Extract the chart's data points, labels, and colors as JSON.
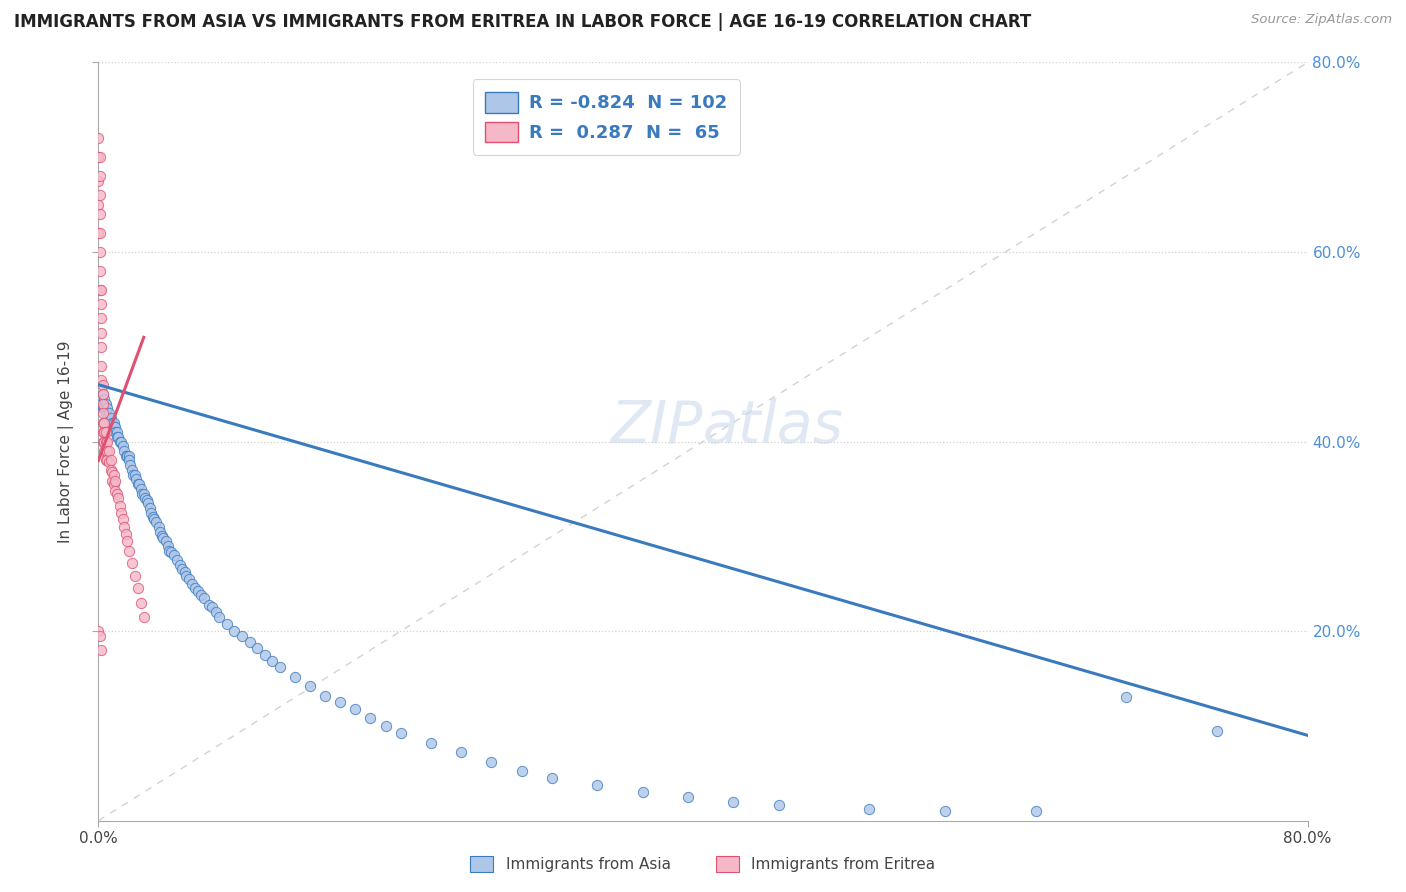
{
  "title": "IMMIGRANTS FROM ASIA VS IMMIGRANTS FROM ERITREA IN LABOR FORCE | AGE 16-19 CORRELATION CHART",
  "source": "Source: ZipAtlas.com",
  "ylabel": "In Labor Force | Age 16-19",
  "xlim": [
    0.0,
    0.8
  ],
  "ylim": [
    0.0,
    0.8
  ],
  "legend_r_asia": "-0.824",
  "legend_n_asia": "102",
  "legend_r_eritrea": "0.287",
  "legend_n_eritrea": "65",
  "color_asia": "#aec6e8",
  "color_eritrea": "#f4b8c8",
  "line_color_asia": "#3a7abf",
  "line_color_eritrea": "#e05070",
  "title_fontsize": 12,
  "axis_fontsize": 11,
  "asia_x": [
    0.001,
    0.002,
    0.003,
    0.003,
    0.004,
    0.004,
    0.005,
    0.005,
    0.006,
    0.006,
    0.007,
    0.007,
    0.008,
    0.009,
    0.01,
    0.01,
    0.011,
    0.011,
    0.012,
    0.012,
    0.013,
    0.014,
    0.015,
    0.016,
    0.017,
    0.018,
    0.019,
    0.02,
    0.02,
    0.021,
    0.022,
    0.023,
    0.024,
    0.025,
    0.026,
    0.027,
    0.028,
    0.029,
    0.03,
    0.031,
    0.032,
    0.033,
    0.034,
    0.035,
    0.036,
    0.037,
    0.038,
    0.04,
    0.041,
    0.042,
    0.043,
    0.045,
    0.046,
    0.047,
    0.048,
    0.05,
    0.052,
    0.054,
    0.055,
    0.057,
    0.058,
    0.06,
    0.062,
    0.064,
    0.066,
    0.068,
    0.07,
    0.073,
    0.075,
    0.078,
    0.08,
    0.085,
    0.09,
    0.095,
    0.1,
    0.105,
    0.11,
    0.115,
    0.12,
    0.13,
    0.14,
    0.15,
    0.16,
    0.17,
    0.18,
    0.19,
    0.2,
    0.22,
    0.24,
    0.26,
    0.28,
    0.3,
    0.33,
    0.36,
    0.39,
    0.42,
    0.45,
    0.51,
    0.56,
    0.62,
    0.68,
    0.74
  ],
  "asia_y": [
    0.445,
    0.44,
    0.45,
    0.435,
    0.445,
    0.435,
    0.44,
    0.43,
    0.435,
    0.425,
    0.43,
    0.42,
    0.425,
    0.42,
    0.42,
    0.415,
    0.415,
    0.41,
    0.41,
    0.405,
    0.405,
    0.4,
    0.4,
    0.395,
    0.39,
    0.385,
    0.385,
    0.385,
    0.38,
    0.375,
    0.37,
    0.365,
    0.365,
    0.36,
    0.355,
    0.355,
    0.35,
    0.345,
    0.345,
    0.34,
    0.338,
    0.335,
    0.33,
    0.325,
    0.32,
    0.318,
    0.315,
    0.31,
    0.305,
    0.3,
    0.298,
    0.295,
    0.29,
    0.285,
    0.283,
    0.28,
    0.275,
    0.27,
    0.265,
    0.262,
    0.258,
    0.255,
    0.25,
    0.245,
    0.242,
    0.238,
    0.235,
    0.228,
    0.225,
    0.22,
    0.215,
    0.208,
    0.2,
    0.195,
    0.188,
    0.182,
    0.175,
    0.168,
    0.162,
    0.152,
    0.142,
    0.132,
    0.125,
    0.118,
    0.108,
    0.1,
    0.092,
    0.082,
    0.072,
    0.062,
    0.052,
    0.045,
    0.038,
    0.03,
    0.025,
    0.02,
    0.016,
    0.012,
    0.01,
    0.01,
    0.13,
    0.095
  ],
  "eritrea_x": [
    0.0,
    0.0,
    0.0,
    0.0,
    0.0,
    0.001,
    0.001,
    0.001,
    0.001,
    0.001,
    0.001,
    0.001,
    0.001,
    0.002,
    0.002,
    0.002,
    0.002,
    0.002,
    0.002,
    0.002,
    0.003,
    0.003,
    0.003,
    0.003,
    0.003,
    0.003,
    0.003,
    0.004,
    0.004,
    0.004,
    0.004,
    0.005,
    0.005,
    0.005,
    0.005,
    0.006,
    0.006,
    0.006,
    0.007,
    0.007,
    0.008,
    0.008,
    0.009,
    0.009,
    0.01,
    0.01,
    0.011,
    0.011,
    0.012,
    0.013,
    0.014,
    0.015,
    0.016,
    0.017,
    0.018,
    0.019,
    0.02,
    0.022,
    0.024,
    0.026,
    0.028,
    0.03,
    0.0,
    0.001,
    0.002
  ],
  "eritrea_y": [
    0.72,
    0.7,
    0.675,
    0.65,
    0.62,
    0.7,
    0.68,
    0.66,
    0.64,
    0.62,
    0.6,
    0.58,
    0.56,
    0.56,
    0.545,
    0.53,
    0.515,
    0.5,
    0.48,
    0.465,
    0.46,
    0.45,
    0.44,
    0.43,
    0.42,
    0.41,
    0.4,
    0.42,
    0.41,
    0.4,
    0.39,
    0.41,
    0.4,
    0.39,
    0.38,
    0.4,
    0.39,
    0.38,
    0.39,
    0.378,
    0.38,
    0.37,
    0.368,
    0.358,
    0.365,
    0.355,
    0.358,
    0.348,
    0.345,
    0.34,
    0.332,
    0.325,
    0.318,
    0.31,
    0.302,
    0.295,
    0.285,
    0.272,
    0.258,
    0.245,
    0.23,
    0.215,
    0.2,
    0.195,
    0.18
  ],
  "asia_line_x": [
    0.0,
    0.8
  ],
  "asia_line_y": [
    0.46,
    0.09
  ],
  "eritrea_line_x": [
    0.0,
    0.03
  ],
  "eritrea_line_y": [
    0.38,
    0.51
  ]
}
